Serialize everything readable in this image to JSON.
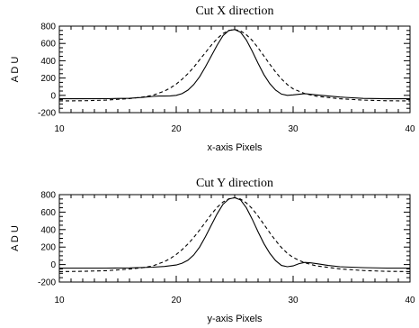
{
  "chart_data": [
    {
      "type": "line",
      "title": "Cut X direction",
      "xlabel": "x-axis Pixels",
      "ylabel": "A D U",
      "xlim": [
        10,
        40
      ],
      "ylim": [
        -200,
        800
      ],
      "xticks": [
        10,
        20,
        30,
        40
      ],
      "yticks": [
        -200,
        0,
        200,
        400,
        600,
        800
      ],
      "grid": false,
      "series": [
        {
          "style": "solid",
          "x": [
            10,
            12,
            14,
            16,
            17,
            18,
            18.5,
            19,
            19.5,
            20,
            20.5,
            21,
            21.5,
            22,
            22.5,
            23,
            23.5,
            24,
            24.5,
            25,
            25.5,
            26,
            26.5,
            27,
            27.5,
            28,
            28.5,
            29,
            29.5,
            30,
            31,
            32,
            34,
            36,
            38,
            40
          ],
          "y": [
            -40,
            -40,
            -39,
            -34,
            -25,
            -12,
            -8,
            -8,
            -6,
            0,
            20,
            60,
            125,
            215,
            330,
            455,
            580,
            690,
            750,
            760,
            730,
            640,
            510,
            370,
            240,
            135,
            60,
            15,
            0,
            5,
            20,
            5,
            -20,
            -35,
            -40,
            -40
          ]
        },
        {
          "style": "dashed",
          "x": [
            10,
            12,
            14,
            16,
            17,
            18,
            19,
            19.5,
            20,
            20.5,
            21,
            21.5,
            22,
            22.5,
            23,
            23.5,
            24,
            24.5,
            25,
            25.5,
            26,
            26.5,
            27,
            27.5,
            28,
            28.5,
            29,
            29.5,
            30,
            31,
            32,
            34,
            36,
            38,
            40
          ],
          "y": [
            -65,
            -62,
            -55,
            -38,
            -22,
            0,
            50,
            85,
            130,
            185,
            250,
            325,
            410,
            495,
            580,
            655,
            715,
            750,
            760,
            745,
            700,
            635,
            550,
            455,
            360,
            270,
            190,
            125,
            75,
            20,
            -10,
            -40,
            -55,
            -62,
            -65
          ]
        }
      ]
    },
    {
      "type": "line",
      "title": "Cut Y direction",
      "xlabel": "y-axis Pixels",
      "ylabel": "A D U",
      "xlim": [
        10,
        40
      ],
      "ylim": [
        -200,
        800
      ],
      "xticks": [
        10,
        20,
        30,
        40
      ],
      "yticks": [
        -200,
        0,
        200,
        400,
        600,
        800
      ],
      "grid": false,
      "series": [
        {
          "style": "solid",
          "x": [
            10,
            12,
            14,
            16,
            18,
            19,
            20,
            20.5,
            21,
            21.5,
            22,
            22.5,
            23,
            23.5,
            24,
            24.5,
            25,
            25.5,
            26,
            26.5,
            27,
            27.5,
            28,
            28.5,
            29,
            29.5,
            30,
            30.5,
            31,
            31.5,
            32,
            33,
            34,
            36,
            38,
            40
          ],
          "y": [
            -40,
            -40,
            -40,
            -38,
            -30,
            -22,
            -5,
            15,
            50,
            110,
            200,
            320,
            450,
            580,
            690,
            750,
            765,
            740,
            650,
            520,
            375,
            240,
            130,
            45,
            -10,
            -25,
            -15,
            10,
            25,
            20,
            10,
            -10,
            -25,
            -35,
            -40,
            -40
          ]
        },
        {
          "style": "dashed",
          "x": [
            10,
            12,
            14,
            16,
            17,
            18,
            19,
            19.5,
            20,
            20.5,
            21,
            21.5,
            22,
            22.5,
            23,
            23.5,
            24,
            24.5,
            25,
            25.5,
            26,
            26.5,
            27,
            27.5,
            28,
            28.5,
            29,
            29.5,
            30,
            31,
            32,
            34,
            36,
            38,
            40
          ],
          "y": [
            -80,
            -77,
            -70,
            -52,
            -38,
            -15,
            35,
            70,
            115,
            170,
            235,
            310,
            395,
            485,
            575,
            655,
            715,
            752,
            765,
            750,
            705,
            640,
            555,
            460,
            365,
            275,
            195,
            130,
            80,
            20,
            -15,
            -50,
            -68,
            -77,
            -80
          ]
        }
      ]
    }
  ]
}
